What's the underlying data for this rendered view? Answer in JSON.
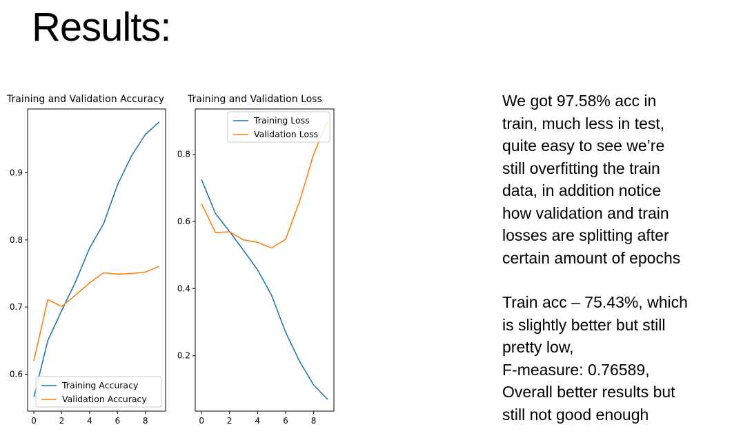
{
  "title": "Results:",
  "notes": {
    "paragraph1": [
      "We got 97.58% acc in",
      "train, much less in test,",
      "quite easy to see we’re",
      "still overfitting the train",
      "data, in addition notice",
      "how validation and train",
      "losses are splitting after",
      "certain amount of epochs"
    ],
    "paragraph2": [
      "Train acc – 75.43%, which",
      "is slightly better but still",
      "pretty low,",
      "F-measure: 0.76589,",
      "Overall better results but",
      "still not good enough"
    ]
  },
  "colors": {
    "training": "#1f77b4",
    "validation": "#ff7f0e"
  },
  "chart_data": [
    {
      "type": "line",
      "title": "Training and Validation Accuracy",
      "x": [
        0,
        1,
        2,
        3,
        4,
        5,
        6,
        7,
        8,
        9
      ],
      "xticks": [
        0,
        2,
        4,
        6,
        8
      ],
      "xlim": [
        -0.45,
        9.45
      ],
      "yticks": [
        0.6,
        0.7,
        0.8,
        0.9
      ],
      "ylim": [
        0.545,
        0.995
      ],
      "legend": "lower right",
      "series": [
        {
          "name": "Training Accuracy",
          "values": [
            0.566,
            0.65,
            0.695,
            0.738,
            0.788,
            0.824,
            0.882,
            0.925,
            0.957,
            0.9758
          ]
        },
        {
          "name": "Validation Accuracy",
          "values": [
            0.62,
            0.711,
            0.701,
            0.718,
            0.736,
            0.751,
            0.749,
            0.75,
            0.752,
            0.761
          ]
        }
      ]
    },
    {
      "type": "line",
      "title": "Training and Validation Loss",
      "x": [
        0,
        1,
        2,
        3,
        4,
        5,
        6,
        7,
        8,
        9
      ],
      "xticks": [
        0,
        2,
        4,
        6,
        8
      ],
      "xlim": [
        -0.45,
        9.45
      ],
      "yticks": [
        0.2,
        0.4,
        0.6,
        0.8
      ],
      "ylim": [
        0.035,
        0.935
      ],
      "legend": "upper right",
      "series": [
        {
          "name": "Training Loss",
          "values": [
            0.725,
            0.623,
            0.57,
            0.514,
            0.456,
            0.38,
            0.27,
            0.183,
            0.113,
            0.07
          ]
        },
        {
          "name": "Validation Loss",
          "values": [
            0.653,
            0.567,
            0.569,
            0.545,
            0.538,
            0.521,
            0.547,
            0.66,
            0.8,
            0.9
          ]
        }
      ]
    }
  ]
}
